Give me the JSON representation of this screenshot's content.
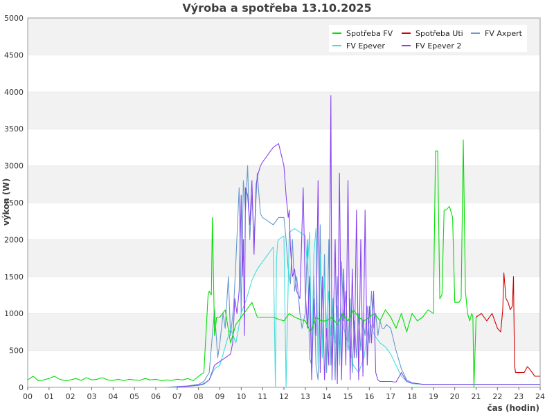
{
  "chart_data": {
    "type": "line",
    "title": "Výroba a spotřeba 13.10.2025",
    "xlabel": "čas (hodin)",
    "ylabel": "výkon (W)",
    "xlim": [
      0,
      24
    ],
    "ylim": [
      0,
      5000
    ],
    "x_ticks": [
      "00",
      "01",
      "02",
      "03",
      "04",
      "05",
      "06",
      "07",
      "08",
      "09",
      "10",
      "11",
      "12",
      "13",
      "14",
      "15",
      "16",
      "17",
      "18",
      "19",
      "20",
      "21",
      "22",
      "23",
      "24"
    ],
    "y_ticks": [
      0,
      500,
      1000,
      1500,
      2000,
      2500,
      3000,
      3500,
      4000,
      4500,
      5000
    ],
    "grid": "horizontal bands",
    "legend_position": "top-right",
    "series": [
      {
        "name": "Spotřeba FV",
        "color": "#00dd00",
        "x": [
          0.0,
          0.25,
          0.5,
          0.75,
          1.0,
          1.25,
          1.5,
          1.75,
          2.0,
          2.25,
          2.5,
          2.75,
          3.0,
          3.25,
          3.5,
          3.75,
          4.0,
          4.25,
          4.5,
          4.75,
          5.0,
          5.25,
          5.5,
          5.75,
          6.0,
          6.25,
          6.5,
          6.75,
          7.0,
          7.25,
          7.5,
          7.75,
          8.0,
          8.25,
          8.45,
          8.5,
          8.6,
          8.65,
          8.75,
          8.85,
          9.0,
          9.25,
          9.5,
          9.75,
          10.0,
          10.25,
          10.5,
          10.75,
          11.0,
          11.25,
          11.5,
          11.75,
          12.0,
          12.25,
          12.5,
          12.75,
          13.0,
          13.25,
          13.5,
          13.75,
          14.0,
          14.25,
          14.5,
          14.75,
          15.0,
          15.25,
          15.5,
          15.75,
          16.0,
          16.25,
          16.5,
          16.75,
          17.0,
          17.25,
          17.5,
          17.75,
          18.0,
          18.25,
          18.5,
          18.75,
          19.0,
          19.1,
          19.2,
          19.3,
          19.4,
          19.5,
          19.6,
          19.75,
          19.9,
          20.0,
          20.2,
          20.3,
          20.4,
          20.5,
          20.6,
          20.7,
          20.75,
          20.8,
          20.85,
          20.9,
          21.0,
          21.05
        ],
        "y": [
          100,
          150,
          90,
          100,
          120,
          150,
          110,
          90,
          100,
          120,
          95,
          130,
          100,
          110,
          130,
          100,
          95,
          110,
          90,
          110,
          100,
          95,
          120,
          100,
          110,
          90,
          100,
          95,
          110,
          100,
          120,
          90,
          150,
          200,
          1250,
          1300,
          1250,
          2300,
          700,
          950,
          950,
          1050,
          600,
          850,
          950,
          1050,
          1150,
          950,
          950,
          950,
          950,
          920,
          900,
          1000,
          950,
          920,
          900,
          750,
          950,
          900,
          900,
          950,
          850,
          1000,
          900,
          1050,
          950,
          900,
          950,
          1000,
          900,
          1050,
          950,
          800,
          1000,
          750,
          1000,
          900,
          950,
          1050,
          1000,
          3200,
          3200,
          1200,
          1250,
          2400,
          2400,
          2450,
          2300,
          1150,
          1150,
          1200,
          3350,
          1300,
          1000,
          900,
          950,
          1000,
          950,
          0,
          950,
          950
        ]
      },
      {
        "name": "Spotřeba Uti",
        "color": "#d00000",
        "x": [
          21.0,
          21.25,
          21.5,
          21.75,
          22.0,
          22.15,
          22.25,
          22.3,
          22.4,
          22.5,
          22.6,
          22.7,
          22.75,
          22.8,
          22.85,
          23.0,
          23.25,
          23.4,
          23.5,
          23.75,
          24.0
        ],
        "y": [
          950,
          1000,
          900,
          1000,
          800,
          750,
          1050,
          1550,
          1200,
          1150,
          1050,
          1100,
          1500,
          300,
          200,
          200,
          200,
          280,
          250,
          150,
          150
        ]
      },
      {
        "name": "FV Axpert",
        "color": "#6699cc",
        "x": [
          6.5,
          7.0,
          7.5,
          8.0,
          8.25,
          8.5,
          8.75,
          8.9,
          9.0,
          9.15,
          9.25,
          9.4,
          9.5,
          9.65,
          9.75,
          9.9,
          10.0,
          10.1,
          10.2,
          10.3,
          10.4,
          10.5,
          10.6,
          10.75,
          10.9,
          11.0,
          11.25,
          11.5,
          11.75,
          12.0,
          12.1,
          12.2,
          12.3,
          12.4,
          12.5,
          12.6,
          12.75,
          12.85,
          13.0,
          13.1,
          13.2,
          13.3,
          13.4,
          13.5,
          13.6,
          13.7,
          13.8,
          13.9,
          14.0,
          14.1,
          14.2,
          14.3,
          14.4,
          14.5,
          14.6,
          14.7,
          14.8,
          14.9,
          15.0,
          15.1,
          15.2,
          15.3,
          15.4,
          15.5,
          15.6,
          15.7,
          15.8,
          15.9,
          16.0,
          16.1,
          16.2,
          16.3,
          16.4,
          16.5,
          16.6,
          16.7,
          16.8,
          17.0,
          17.25,
          17.5,
          17.75,
          18.0,
          18.5,
          19.0,
          20.0,
          21.0,
          22.0,
          23.0,
          24.0
        ],
        "y": [
          0,
          10,
          20,
          40,
          80,
          200,
          1050,
          400,
          600,
          1000,
          800,
          1500,
          700,
          1100,
          1700,
          2700,
          1000,
          2800,
          2400,
          3000,
          2000,
          2600,
          2000,
          2900,
          2350,
          2300,
          2250,
          2200,
          2300,
          2300,
          2000,
          1600,
          1400,
          2000,
          1300,
          1500,
          1000,
          800,
          1000,
          2000,
          400,
          300,
          1500,
          300,
          100,
          2200,
          400,
          1800,
          200,
          2000,
          300,
          1200,
          100,
          1500,
          400,
          1700,
          900,
          1300,
          500,
          1200,
          200,
          900,
          400,
          1000,
          500,
          900,
          700,
          1100,
          600,
          1300,
          800,
          1000,
          700,
          900,
          800,
          800,
          850,
          800,
          500,
          250,
          100,
          60,
          40,
          40,
          40,
          40,
          40,
          40,
          40
        ]
      },
      {
        "name": "FV Epever",
        "color": "#44dddd",
        "x": [
          7.0,
          7.5,
          8.0,
          8.25,
          8.5,
          8.75,
          9.0,
          9.25,
          9.5,
          9.75,
          10.0,
          10.25,
          10.5,
          10.75,
          11.0,
          11.25,
          11.5,
          11.6,
          11.65,
          11.7,
          11.75,
          12.0,
          12.1,
          12.25,
          12.5,
          12.75,
          13.0,
          13.1,
          13.2,
          13.3,
          13.4,
          13.5,
          13.6,
          13.7,
          13.8,
          13.9,
          14.0,
          14.1,
          14.2,
          14.3,
          14.4,
          14.5,
          14.6,
          14.7,
          14.8,
          14.9,
          15.0,
          15.25,
          15.5,
          15.75,
          16.0,
          16.25,
          16.5,
          16.75,
          17.0,
          17.25,
          17.5,
          17.75,
          18.0,
          18.5,
          19.0,
          20.0,
          21.0,
          22.0,
          23.0,
          24.0
        ],
        "y": [
          10,
          15,
          25,
          40,
          100,
          250,
          300,
          550,
          800,
          600,
          1000,
          1200,
          1450,
          1600,
          1700,
          1800,
          1900,
          0,
          1700,
          1950,
          2000,
          2050,
          0,
          2100,
          2150,
          2100,
          2050,
          1600,
          2100,
          300,
          1800,
          2150,
          300,
          1800,
          400,
          1500,
          800,
          1300,
          700,
          1200,
          600,
          1100,
          300,
          1000,
          800,
          700,
          600,
          300,
          200,
          400,
          900,
          700,
          600,
          550,
          450,
          300,
          150,
          80,
          50,
          40,
          40,
          40,
          40,
          40,
          40,
          40
        ]
      },
      {
        "name": "FV Epever 2",
        "color": "#8844ee",
        "x": [
          7.0,
          7.5,
          8.0,
          8.25,
          8.5,
          8.75,
          9.0,
          9.25,
          9.5,
          9.6,
          9.7,
          9.8,
          9.9,
          10.0,
          10.05,
          10.1,
          10.15,
          10.2,
          10.3,
          10.4,
          10.5,
          10.6,
          10.7,
          10.8,
          10.9,
          11.0,
          11.25,
          11.5,
          11.75,
          12.0,
          12.1,
          12.2,
          12.25,
          12.3,
          12.4,
          12.5,
          12.6,
          12.75,
          12.9,
          13.0,
          13.1,
          13.2,
          13.3,
          13.4,
          13.5,
          13.6,
          13.7,
          13.8,
          13.9,
          14.0,
          14.1,
          14.2,
          14.25,
          14.3,
          14.4,
          14.5,
          14.6,
          14.7,
          14.8,
          14.9,
          15.0,
          15.1,
          15.2,
          15.3,
          15.4,
          15.5,
          15.6,
          15.7,
          15.8,
          15.9,
          16.0,
          16.1,
          16.2,
          16.3,
          16.4,
          16.5,
          16.75,
          17.0,
          17.25,
          17.5,
          17.75,
          18.0,
          18.5,
          19.0,
          20.0,
          21.0,
          22.0,
          23.0,
          24.0
        ],
        "y": [
          10,
          15,
          30,
          50,
          100,
          300,
          350,
          400,
          450,
          600,
          1200,
          1000,
          1300,
          2600,
          1500,
          2000,
          700,
          2700,
          2600,
          2200,
          2800,
          1800,
          2750,
          2900,
          3000,
          3050,
          3150,
          3250,
          3300,
          3000,
          2600,
          2300,
          2400,
          1900,
          1500,
          1600,
          1300,
          1200,
          2700,
          1300,
          800,
          1500,
          100,
          1200,
          700,
          2800,
          200,
          1500,
          100,
          800,
          300,
          3950,
          100,
          700,
          2000,
          50,
          2900,
          100,
          1600,
          300,
          2800,
          100,
          1600,
          400,
          2400,
          100,
          2000,
          150,
          2400,
          300,
          1100,
          600,
          1300,
          200,
          100,
          80,
          80,
          80,
          70,
          200,
          80,
          60,
          40,
          40,
          40,
          40,
          40,
          40,
          40
        ]
      }
    ]
  }
}
